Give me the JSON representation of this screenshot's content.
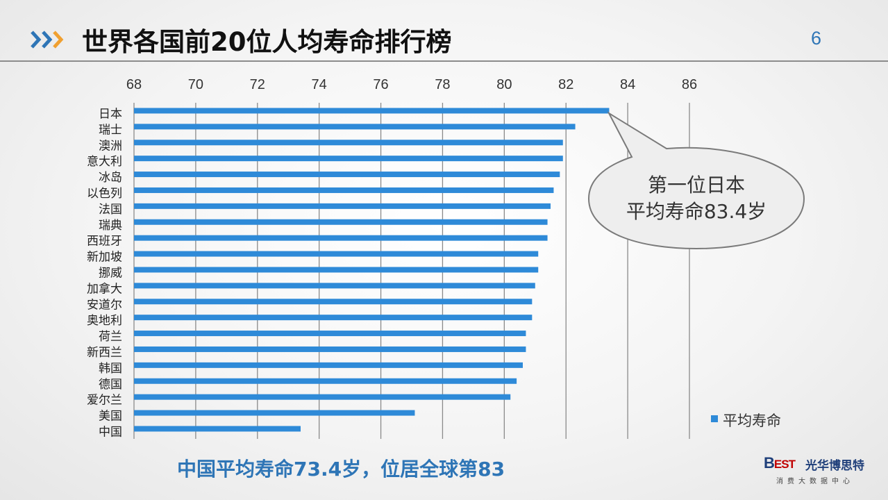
{
  "header": {
    "title": "世界各国前20位人均寿命排行榜",
    "page_number": "6"
  },
  "callout": {
    "line1": "第一位日本",
    "line2": "平均寿命83.4岁"
  },
  "caption": "中国平均寿命73.4岁，位居全球第83",
  "logo": {
    "mark_b": "B",
    "mark_est": "EST",
    "name": "光华博思特",
    "sub": "消费大数据中心"
  },
  "colors": {
    "bar": "#2e8ad8",
    "accent_blue": "#2e75b6",
    "accent_orange": "#f0a030"
  },
  "chart_data": {
    "type": "bar",
    "orientation": "horizontal",
    "categories": [
      "日本",
      "瑞士",
      "澳洲",
      "意大利",
      "冰岛",
      "以色列",
      "法国",
      "瑞典",
      "西班牙",
      "新加坡",
      "挪威",
      "加拿大",
      "安道尔",
      "奥地利",
      "荷兰",
      "新西兰",
      "韩国",
      "德国",
      "爱尔兰",
      "美国",
      "中国"
    ],
    "series": [
      {
        "name": "平均寿命",
        "values": [
          83.4,
          82.3,
          81.9,
          81.9,
          81.8,
          81.6,
          81.5,
          81.4,
          81.4,
          81.1,
          81.1,
          81.0,
          80.9,
          80.9,
          80.7,
          80.7,
          80.6,
          80.4,
          80.2,
          77.1,
          73.4
        ]
      }
    ],
    "xlim": [
      68,
      86
    ],
    "xticks": [
      "68",
      "70",
      "72",
      "74",
      "76",
      "78",
      "80",
      "82",
      "84",
      "86"
    ],
    "x_axis_position": "top",
    "grid": true,
    "legend_position": "right"
  }
}
